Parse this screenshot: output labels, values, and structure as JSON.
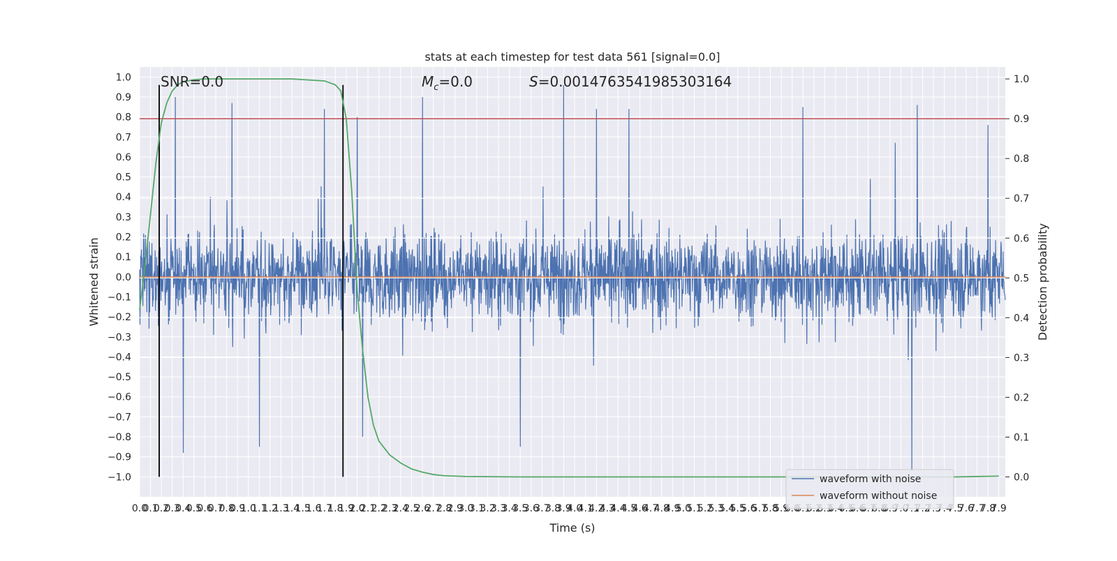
{
  "chart_data": {
    "type": "line",
    "title": "stats at each timestep for test data 561 [signal=0.0]",
    "xlabel": "Time (s)",
    "ylabel": "Whitened strain",
    "y2label": "Detection probability",
    "xlim": [
      0.0,
      7.96
    ],
    "ylim": [
      -1.1,
      1.05
    ],
    "y2lim": [
      -0.05,
      1.03
    ],
    "x_ticks": [
      "0.0",
      "0.1",
      "0.2",
      "0.3",
      "0.4",
      "0.5",
      "0.6",
      "0.7",
      "0.8",
      "0.9",
      "1.0",
      "1.1",
      "1.2",
      "1.3",
      "1.4",
      "1.5",
      "1.6",
      "1.7",
      "1.8",
      "1.9",
      "2.0",
      "2.1",
      "2.2",
      "2.3",
      "2.4",
      "2.5",
      "2.6",
      "2.7",
      "2.8",
      "2.9",
      "3.0",
      "3.1",
      "3.2",
      "3.3",
      "3.4",
      "3.5",
      "3.6",
      "3.7",
      "3.8",
      "3.9",
      "4.0",
      "4.1",
      "4.2",
      "4.3",
      "4.4",
      "4.5",
      "4.6",
      "4.7",
      "4.8",
      "4.9",
      "5.0",
      "5.1",
      "5.2",
      "5.3",
      "5.4",
      "5.5",
      "5.6",
      "5.7",
      "5.8",
      "5.9",
      "6.0",
      "6.1",
      "6.2",
      "6.3",
      "6.4",
      "6.5",
      "6.6",
      "6.7",
      "6.8",
      "6.9",
      "7.0",
      "7.1",
      "7.2",
      "7.3",
      "7.4",
      "7.5",
      "7.6",
      "7.7",
      "7.8",
      "7.9"
    ],
    "y_ticks": [
      "1.0",
      "0.9",
      "0.8",
      "0.7",
      "0.6",
      "0.5",
      "0.4",
      "0.3",
      "0.2",
      "0.1",
      "0.0",
      "−0.1",
      "−0.2",
      "−0.3",
      "−0.4",
      "−0.5",
      "−0.6",
      "−0.7",
      "−0.8",
      "−0.9",
      "−1.0"
    ],
    "y2_ticks": [
      "1.0",
      "0.9",
      "0.8",
      "0.7",
      "0.6",
      "0.5",
      "0.4",
      "0.3",
      "0.2",
      "0.1",
      "0.0"
    ],
    "annotations": {
      "snr": "SNR=0.0",
      "mc": "=0.0",
      "mc_symbol": "M",
      "mc_sub": "c",
      "s": "=0.0014763541985303164",
      "s_symbol": "S"
    },
    "grid": true,
    "legend_position": "lower-right",
    "series": [
      {
        "name": "waveform with noise",
        "color": "#4c72b0",
        "description": "dense noise waveform, amplitude mostly within ±0.45 with spikes to about +0.96 and −0.97",
        "typical_amplitude": 0.4,
        "peaks": [
          {
            "x": 0.33,
            "y": 0.9
          },
          {
            "x": 0.4,
            "y": -0.88
          },
          {
            "x": 0.85,
            "y": 0.87
          },
          {
            "x": 1.1,
            "y": -0.85
          },
          {
            "x": 1.7,
            "y": 0.84
          },
          {
            "x": 2.0,
            "y": 0.8
          },
          {
            "x": 2.05,
            "y": -0.8
          },
          {
            "x": 2.6,
            "y": 0.9
          },
          {
            "x": 3.5,
            "y": -0.85
          },
          {
            "x": 3.9,
            "y": 0.96
          },
          {
            "x": 4.2,
            "y": 0.84
          },
          {
            "x": 4.5,
            "y": 0.84
          },
          {
            "x": 6.1,
            "y": 0.85
          },
          {
            "x": 7.1,
            "y": -0.97
          },
          {
            "x": 7.15,
            "y": 0.86
          },
          {
            "x": 7.8,
            "y": 0.76
          }
        ]
      },
      {
        "name": "waveform without noise",
        "color": "#dd8452",
        "x": [
          0.0,
          7.96
        ],
        "y": [
          0.0,
          0.0
        ]
      },
      {
        "name": "detection probability",
        "color": "#55a868",
        "axis": "right",
        "x": [
          0.0,
          0.05,
          0.1,
          0.15,
          0.2,
          0.25,
          0.3,
          0.35,
          0.4,
          0.5,
          0.6,
          0.8,
          1.0,
          1.4,
          1.7,
          1.8,
          1.85,
          1.9,
          1.95,
          2.0,
          2.05,
          2.1,
          2.15,
          2.2,
          2.3,
          2.4,
          2.5,
          2.6,
          2.7,
          2.8,
          3.0,
          3.5,
          5.0,
          7.5,
          7.9
        ],
        "y": [
          0.42,
          0.53,
          0.66,
          0.79,
          0.89,
          0.94,
          0.97,
          0.985,
          0.993,
          0.998,
          1.0,
          1.0,
          1.0,
          1.0,
          0.995,
          0.985,
          0.97,
          0.9,
          0.72,
          0.47,
          0.32,
          0.2,
          0.13,
          0.09,
          0.055,
          0.035,
          0.02,
          0.012,
          0.006,
          0.003,
          0.001,
          0.0,
          0.0,
          0.0,
          0.002
        ]
      }
    ],
    "threshold": {
      "axis": "right",
      "y": 0.9,
      "color": "#c44e52"
    },
    "vertical_lines": [
      {
        "x": 0.18
      },
      {
        "x": 1.87
      }
    ],
    "vertical_line_range": [
      -1.0,
      0.96
    ],
    "right_axis_h_gridlines": [
      0.7,
      0.6,
      0.5,
      0.4,
      0.3
    ]
  }
}
